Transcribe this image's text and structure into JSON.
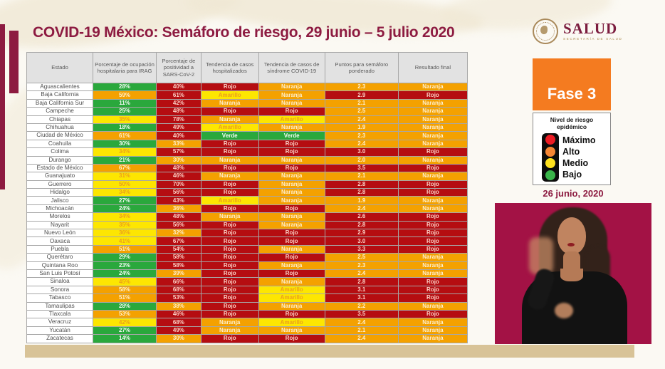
{
  "header": {
    "title": "COVID-19 México: Semáforo de riesgo, 29 junio – 5 julio 2020"
  },
  "logo": {
    "name": "SALUD",
    "subtitle": "SECRETARÍA DE SALUD"
  },
  "right_panel": {
    "phase_label": "Fase 3",
    "legend": {
      "title": "Nivel de riesgo epidémico",
      "items": [
        {
          "label": "Máximo",
          "color": "#ed1c24"
        },
        {
          "label": "Alto",
          "color": "#f58634"
        },
        {
          "label": "Medio",
          "color": "#ffe21f"
        },
        {
          "label": "Bajo",
          "color": "#39b54a"
        }
      ]
    },
    "date_label": "26 junio, 2020"
  },
  "colors": {
    "maroon": "#8d1b41",
    "phase_orange": "#f47b20",
    "video_background": "#a31245",
    "bottom_bar": "#d8c397"
  },
  "table": {
    "headers": [
      "Estado",
      "Porcentaje de ocupación hospitalaria para IRAG",
      "Porcentaje de positividad a SARS-CoV-2",
      "Tendencia de casos hospitalizados",
      "Tendencia de casos de síndrome COVID-19",
      "Puntos para semáforo ponderado",
      "Resultado final"
    ],
    "cell_colors": {
      "green": "#2aa83c",
      "yellow": "#fde601",
      "orange": "#f4a100",
      "red": "#b50d11"
    },
    "rows": [
      {
        "estado": "Aguascalientes",
        "cells": [
          [
            "28%",
            "green"
          ],
          [
            "40%",
            "red"
          ],
          [
            "Rojo",
            "red"
          ],
          [
            "Naranja",
            "orange"
          ],
          [
            "2.3",
            "orange"
          ],
          [
            "Naranja",
            "orange"
          ]
        ]
      },
      {
        "estado": "Baja California",
        "cells": [
          [
            "59%",
            "orange"
          ],
          [
            "61%",
            "red"
          ],
          [
            "Amarillo",
            "yellow"
          ],
          [
            "Naranja",
            "orange"
          ],
          [
            "2.9",
            "red"
          ],
          [
            "Rojo",
            "red"
          ]
        ]
      },
      {
        "estado": "Baja California Sur",
        "cells": [
          [
            "11%",
            "green"
          ],
          [
            "42%",
            "red"
          ],
          [
            "Naranja",
            "orange"
          ],
          [
            "Naranja",
            "orange"
          ],
          [
            "2.1",
            "orange"
          ],
          [
            "Naranja",
            "orange"
          ]
        ]
      },
      {
        "estado": "Campeche",
        "cells": [
          [
            "25%",
            "green"
          ],
          [
            "48%",
            "red"
          ],
          [
            "Rojo",
            "red"
          ],
          [
            "Rojo",
            "red"
          ],
          [
            "2.5",
            "orange"
          ],
          [
            "Naranja",
            "orange"
          ]
        ]
      },
      {
        "estado": "Chiapas",
        "cells": [
          [
            "35%",
            "yellow"
          ],
          [
            "78%",
            "red"
          ],
          [
            "Naranja",
            "orange"
          ],
          [
            "Amarillo",
            "yellow"
          ],
          [
            "2.4",
            "orange"
          ],
          [
            "Naranja",
            "orange"
          ]
        ]
      },
      {
        "estado": "Chihuahua",
        "cells": [
          [
            "18%",
            "green"
          ],
          [
            "49%",
            "red"
          ],
          [
            "Amarillo",
            "yellow"
          ],
          [
            "Naranja",
            "orange"
          ],
          [
            "1.9",
            "orange"
          ],
          [
            "Naranja",
            "orange"
          ]
        ]
      },
      {
        "estado": "Ciudad de México",
        "cells": [
          [
            "61%",
            "orange"
          ],
          [
            "40%",
            "red"
          ],
          [
            "Verde",
            "green"
          ],
          [
            "Verde",
            "green"
          ],
          [
            "2.3",
            "orange"
          ],
          [
            "Naranja",
            "orange"
          ]
        ]
      },
      {
        "estado": "Coahuila",
        "cells": [
          [
            "30%",
            "green"
          ],
          [
            "33%",
            "orange"
          ],
          [
            "Rojo",
            "red"
          ],
          [
            "Rojo",
            "red"
          ],
          [
            "2.4",
            "orange"
          ],
          [
            "Naranja",
            "orange"
          ]
        ]
      },
      {
        "estado": "Colima",
        "cells": [
          [
            "34%",
            "yellow"
          ],
          [
            "57%",
            "red"
          ],
          [
            "Rojo",
            "red"
          ],
          [
            "Rojo",
            "red"
          ],
          [
            "3.0",
            "red"
          ],
          [
            "Rojo",
            "red"
          ]
        ]
      },
      {
        "estado": "Durango",
        "cells": [
          [
            "21%",
            "green"
          ],
          [
            "30%",
            "orange"
          ],
          [
            "Naranja",
            "orange"
          ],
          [
            "Naranja",
            "orange"
          ],
          [
            "2.0",
            "orange"
          ],
          [
            "Naranja",
            "orange"
          ]
        ]
      },
      {
        "estado": "Estado de México",
        "cells": [
          [
            "67%",
            "orange"
          ],
          [
            "48%",
            "red"
          ],
          [
            "Rojo",
            "red"
          ],
          [
            "Rojo",
            "red"
          ],
          [
            "3.5",
            "red"
          ],
          [
            "Rojo",
            "red"
          ]
        ]
      },
      {
        "estado": "Guanajuato",
        "cells": [
          [
            "31%",
            "yellow"
          ],
          [
            "46%",
            "red"
          ],
          [
            "Naranja",
            "orange"
          ],
          [
            "Naranja",
            "orange"
          ],
          [
            "2.1",
            "orange"
          ],
          [
            "Naranja",
            "orange"
          ]
        ]
      },
      {
        "estado": "Guerrero",
        "cells": [
          [
            "50%",
            "yellow"
          ],
          [
            "70%",
            "red"
          ],
          [
            "Rojo",
            "red"
          ],
          [
            "Naranja",
            "orange"
          ],
          [
            "2.8",
            "red"
          ],
          [
            "Rojo",
            "red"
          ]
        ]
      },
      {
        "estado": "Hidalgo",
        "cells": [
          [
            "34%",
            "yellow"
          ],
          [
            "56%",
            "red"
          ],
          [
            "Rojo",
            "red"
          ],
          [
            "Naranja",
            "orange"
          ],
          [
            "2.8",
            "red"
          ],
          [
            "Rojo",
            "red"
          ]
        ]
      },
      {
        "estado": "Jalisco",
        "cells": [
          [
            "27%",
            "green"
          ],
          [
            "43%",
            "red"
          ],
          [
            "Amarillo",
            "yellow"
          ],
          [
            "Naranja",
            "orange"
          ],
          [
            "1.9",
            "orange"
          ],
          [
            "Naranja",
            "orange"
          ]
        ]
      },
      {
        "estado": "Michoacán",
        "cells": [
          [
            "24%",
            "green"
          ],
          [
            "36%",
            "orange"
          ],
          [
            "Rojo",
            "red"
          ],
          [
            "Rojo",
            "red"
          ],
          [
            "2.4",
            "orange"
          ],
          [
            "Naranja",
            "orange"
          ]
        ]
      },
      {
        "estado": "Morelos",
        "cells": [
          [
            "34%",
            "yellow"
          ],
          [
            "48%",
            "red"
          ],
          [
            "Naranja",
            "orange"
          ],
          [
            "Naranja",
            "orange"
          ],
          [
            "2.6",
            "red"
          ],
          [
            "Rojo",
            "red"
          ]
        ]
      },
      {
        "estado": "Nayarit",
        "cells": [
          [
            "35%",
            "yellow"
          ],
          [
            "56%",
            "red"
          ],
          [
            "Rojo",
            "red"
          ],
          [
            "Naranja",
            "orange"
          ],
          [
            "2.8",
            "red"
          ],
          [
            "Rojo",
            "red"
          ]
        ]
      },
      {
        "estado": "Nuevo León",
        "cells": [
          [
            "36%",
            "yellow"
          ],
          [
            "32%",
            "orange"
          ],
          [
            "Rojo",
            "red"
          ],
          [
            "Rojo",
            "red"
          ],
          [
            "2.9",
            "red"
          ],
          [
            "Rojo",
            "red"
          ]
        ]
      },
      {
        "estado": "Oaxaca",
        "cells": [
          [
            "41%",
            "yellow"
          ],
          [
            "67%",
            "red"
          ],
          [
            "Rojo",
            "red"
          ],
          [
            "Rojo",
            "red"
          ],
          [
            "3.0",
            "red"
          ],
          [
            "Rojo",
            "red"
          ]
        ]
      },
      {
        "estado": "Puebla",
        "cells": [
          [
            "51%",
            "orange"
          ],
          [
            "54%",
            "red"
          ],
          [
            "Rojo",
            "red"
          ],
          [
            "Naranja",
            "orange"
          ],
          [
            "3.3",
            "red"
          ],
          [
            "Rojo",
            "red"
          ]
        ]
      },
      {
        "estado": "Querétaro",
        "cells": [
          [
            "29%",
            "green"
          ],
          [
            "58%",
            "red"
          ],
          [
            "Rojo",
            "red"
          ],
          [
            "Rojo",
            "red"
          ],
          [
            "2.5",
            "orange"
          ],
          [
            "Naranja",
            "orange"
          ]
        ]
      },
      {
        "estado": "Quintana Roo",
        "cells": [
          [
            "23%",
            "green"
          ],
          [
            "58%",
            "red"
          ],
          [
            "Rojo",
            "red"
          ],
          [
            "Naranja",
            "orange"
          ],
          [
            "2.3",
            "orange"
          ],
          [
            "Naranja",
            "orange"
          ]
        ]
      },
      {
        "estado": "San Luis Potosí",
        "cells": [
          [
            "24%",
            "green"
          ],
          [
            "39%",
            "orange"
          ],
          [
            "Rojo",
            "red"
          ],
          [
            "Rojo",
            "red"
          ],
          [
            "2.4",
            "orange"
          ],
          [
            "Naranja",
            "orange"
          ]
        ]
      },
      {
        "estado": "Sinaloa",
        "cells": [
          [
            "45%",
            "yellow"
          ],
          [
            "66%",
            "red"
          ],
          [
            "Rojo",
            "red"
          ],
          [
            "Naranja",
            "orange"
          ],
          [
            "2.8",
            "red"
          ],
          [
            "Rojo",
            "red"
          ]
        ]
      },
      {
        "estado": "Sonora",
        "cells": [
          [
            "58%",
            "orange"
          ],
          [
            "68%",
            "red"
          ],
          [
            "Rojo",
            "red"
          ],
          [
            "Amarillo",
            "yellow"
          ],
          [
            "3.1",
            "red"
          ],
          [
            "Rojo",
            "red"
          ]
        ]
      },
      {
        "estado": "Tabasco",
        "cells": [
          [
            "51%",
            "orange"
          ],
          [
            "53%",
            "red"
          ],
          [
            "Rojo",
            "red"
          ],
          [
            "Amarillo",
            "yellow"
          ],
          [
            "3.1",
            "red"
          ],
          [
            "Rojo",
            "red"
          ]
        ]
      },
      {
        "estado": "Tamaulipas",
        "cells": [
          [
            "28%",
            "green"
          ],
          [
            "38%",
            "orange"
          ],
          [
            "Rojo",
            "red"
          ],
          [
            "Naranja",
            "orange"
          ],
          [
            "2.2",
            "orange"
          ],
          [
            "Naranja",
            "orange"
          ]
        ]
      },
      {
        "estado": "Tlaxcala",
        "cells": [
          [
            "53%",
            "orange"
          ],
          [
            "46%",
            "red"
          ],
          [
            "Rojo",
            "red"
          ],
          [
            "Rojo",
            "red"
          ],
          [
            "3.5",
            "red"
          ],
          [
            "Rojo",
            "red"
          ]
        ]
      },
      {
        "estado": "Veracruz",
        "cells": [
          [
            "42%",
            "yellow"
          ],
          [
            "68%",
            "red"
          ],
          [
            "Naranja",
            "orange"
          ],
          [
            "Amarillo",
            "yellow"
          ],
          [
            "2.4",
            "orange"
          ],
          [
            "Naranja",
            "orange"
          ]
        ]
      },
      {
        "estado": "Yucatán",
        "cells": [
          [
            "27%",
            "green"
          ],
          [
            "49%",
            "red"
          ],
          [
            "Naranja",
            "orange"
          ],
          [
            "Naranja",
            "orange"
          ],
          [
            "2.1",
            "orange"
          ],
          [
            "Naranja",
            "orange"
          ]
        ]
      },
      {
        "estado": "Zacatecas",
        "cells": [
          [
            "14%",
            "green"
          ],
          [
            "30%",
            "orange"
          ],
          [
            "Rojo",
            "red"
          ],
          [
            "Rojo",
            "red"
          ],
          [
            "2.4",
            "orange"
          ],
          [
            "Naranja",
            "orange"
          ]
        ]
      }
    ]
  }
}
